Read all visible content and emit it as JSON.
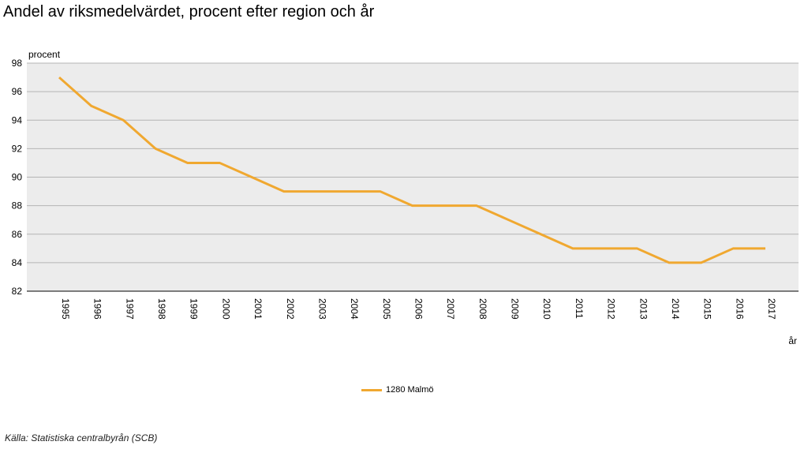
{
  "title": "Andel av riksmedelvärdet, procent efter region och år",
  "source": "Källa: Statistiska centralbyrån (SCB)",
  "colors": {
    "series": "#f0a830",
    "plot_bg": "#ececec",
    "grid": "#b4b4b4"
  },
  "chart_data": {
    "type": "line",
    "title": "Andel av riksmedelvärdet, procent efter region och år",
    "xlabel": "år",
    "ylabel": "procent",
    "ylim": [
      82,
      98
    ],
    "yticks": [
      82,
      84,
      86,
      88,
      90,
      92,
      94,
      96,
      98
    ],
    "grid": true,
    "legend_position": "bottom-center",
    "x": [
      "1995",
      "1996",
      "1997",
      "1998",
      "1999",
      "2000",
      "2001",
      "2002",
      "2003",
      "2004",
      "2005",
      "2006",
      "2007",
      "2008",
      "2009",
      "2010",
      "2011",
      "2012",
      "2013",
      "2014",
      "2015",
      "2016",
      "2017"
    ],
    "series": [
      {
        "name": "1280 Malmö",
        "values": [
          97,
          95,
          94,
          92,
          91,
          91,
          90,
          89,
          89,
          89,
          89,
          88,
          88,
          88,
          87,
          86,
          85,
          85,
          85,
          84,
          84,
          85,
          85
        ]
      }
    ]
  }
}
